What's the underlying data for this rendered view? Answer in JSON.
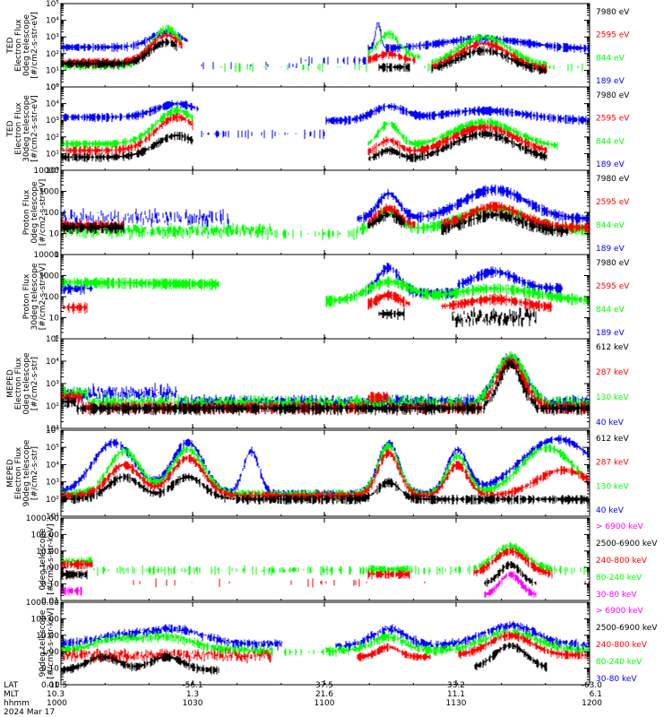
{
  "colors": {
    "blue": "#0000ff",
    "red": "#ff0000",
    "green": "#00ff00",
    "black": "#000000",
    "magenta": "#ff00ff"
  },
  "chart_data": [
    {
      "type": "line",
      "ylabel": [
        "TED",
        "Electron Flux",
        "0deg telescope",
        "[#/cm2-s-str-eV]"
      ],
      "yscale": "log",
      "ylim": [
        1,
        100000
      ],
      "yticks": [
        "10⁰",
        "10¹",
        "10²",
        "10³",
        "10⁴",
        "10⁵"
      ],
      "series": [
        {
          "name": "7980 eV",
          "color": "black"
        },
        {
          "name": "2595 eV",
          "color": "red"
        },
        {
          "name": "844 eV",
          "color": "green"
        },
        {
          "name": "189 eV",
          "color": "blue"
        }
      ]
    },
    {
      "type": "line",
      "ylabel": [
        "TED",
        "Electron Flux",
        "30deg telescope",
        "[#/cm2-s-str-eV]"
      ],
      "yscale": "log",
      "ylim": [
        1,
        100000
      ],
      "yticks": [
        "10⁰",
        "10¹",
        "10²",
        "10³",
        "10⁴",
        "10⁵"
      ],
      "series": [
        {
          "name": "7980 eV",
          "color": "black"
        },
        {
          "name": "2595 eV",
          "color": "red"
        },
        {
          "name": "844 eV",
          "color": "green"
        },
        {
          "name": "189 eV",
          "color": "blue"
        }
      ]
    },
    {
      "type": "line",
      "ylabel": [
        "Proton Flux",
        "0deg telescope",
        "[#/cm2-s-str-eV]"
      ],
      "yscale": "log",
      "ylim": [
        1,
        10000
      ],
      "yticks": [
        "1",
        "10",
        "100",
        "1000",
        "10000"
      ],
      "series": [
        {
          "name": "7980 eV",
          "color": "black"
        },
        {
          "name": "2595 eV",
          "color": "red"
        },
        {
          "name": "844 eV",
          "color": "green"
        },
        {
          "name": "189 eV",
          "color": "blue"
        }
      ]
    },
    {
      "type": "line",
      "ylabel": [
        "Proton Flux",
        "30deg telescope",
        "[#/cm2-s-str-eV]"
      ],
      "yscale": "log",
      "ylim": [
        1,
        10000
      ],
      "yticks": [
        "1",
        "10",
        "100",
        "1000",
        "10000"
      ],
      "series": [
        {
          "name": "7980 eV",
          "color": "black"
        },
        {
          "name": "2595 eV",
          "color": "red"
        },
        {
          "name": "844 eV",
          "color": "green"
        },
        {
          "name": "189 eV",
          "color": "blue"
        }
      ]
    },
    {
      "type": "line",
      "ylabel": [
        "MEPED",
        "Electron Flux",
        "0deg telescope",
        "[#/cm2-s-str]"
      ],
      "yscale": "log",
      "ylim": [
        10,
        100000
      ],
      "yticks": [
        "10¹",
        "10²",
        "10³",
        "10⁴",
        "10⁵"
      ],
      "series": [
        {
          "name": "612 keV",
          "color": "black"
        },
        {
          "name": "287 keV",
          "color": "red"
        },
        {
          "name": "130 keV",
          "color": "green"
        },
        {
          "name": "40 keV",
          "color": "blue"
        }
      ]
    },
    {
      "type": "line",
      "ylabel": [
        "MEPED",
        "Electron Flux",
        "90deg telescope",
        "[#/cm2-s-str]"
      ],
      "yscale": "log",
      "ylim": [
        10,
        1000000
      ],
      "yticks": [
        "10¹",
        "10²",
        "10³",
        "10⁴",
        "10⁵",
        "10⁶"
      ],
      "series": [
        {
          "name": "612 keV",
          "color": "black"
        },
        {
          "name": "287 keV",
          "color": "red"
        },
        {
          "name": "130 keV",
          "color": "green"
        },
        {
          "name": "40 keV",
          "color": "blue"
        }
      ]
    },
    {
      "type": "line",
      "ylabel": [
        "0deg telescope",
        "[#/cm2-s-str-keV]"
      ],
      "yscale": "log",
      "ylim": [
        0.01,
        1000
      ],
      "yticks": [
        "0.01",
        "0.10",
        "1.00",
        "10.00",
        "100.00",
        "1000.00"
      ],
      "series": [
        {
          "name": "> 6900 keV",
          "color": "magenta"
        },
        {
          "name": "2500-6900 keV",
          "color": "black"
        },
        {
          "name": "240-800 keV",
          "color": "red"
        },
        {
          "name": "80-240 keV",
          "color": "green"
        },
        {
          "name": "30-80 keV",
          "color": "magenta"
        }
      ]
    },
    {
      "type": "line",
      "ylabel": [
        "90deg telescope",
        "[#/cm2-s-str-keV]"
      ],
      "yscale": "log",
      "ylim": [
        0.01,
        1000
      ],
      "yticks": [
        "0.01",
        "0.10",
        "1.00",
        "10.00",
        "100.00",
        "1000.00"
      ],
      "series": [
        {
          "name": "> 6900 keV",
          "color": "magenta"
        },
        {
          "name": "2500-6900 keV",
          "color": "black"
        },
        {
          "name": "240-800 keV",
          "color": "red"
        },
        {
          "name": "80-240 keV",
          "color": "green"
        },
        {
          "name": "30-80 keV",
          "color": "blue"
        }
      ]
    }
  ],
  "x_axis": {
    "row_labels": [
      "LAT",
      "MLT",
      "hhmm",
      "2024 Mar 17"
    ],
    "columns": [
      {
        "lat": "-10.5",
        "mlt": "10.3",
        "hhmm": "1000"
      },
      {
        "lat": "-56.1",
        "mlt": "1.3",
        "hhmm": "1030"
      },
      {
        "lat": "37.5",
        "mlt": "21.6",
        "hhmm": "1100"
      },
      {
        "lat": "33.2",
        "mlt": "11.1",
        "hhmm": "1130"
      },
      {
        "lat": "-63.0",
        "mlt": "6.1",
        "hhmm": "1200"
      }
    ]
  }
}
